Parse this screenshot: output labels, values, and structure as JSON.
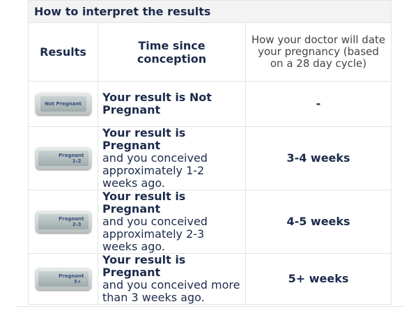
{
  "header": {
    "title": "How to interpret the results"
  },
  "table": {
    "columns": [
      "Results",
      "Time since conception",
      "How your doctor will date your pregnancy (based on a 28 day cycle)"
    ],
    "rows": [
      {
        "display": [
          "Not Pregnant"
        ],
        "result": "Your result is Not Pregnant",
        "doctor": "-"
      },
      {
        "display": [
          "Pregnant",
          "1-2"
        ],
        "result": "Your result is Pregnant",
        "detail": "and you conceived approximately 1-2 weeks ago.",
        "doctor": "3-4 weeks"
      },
      {
        "display": [
          "Pregnant",
          "2-3"
        ],
        "result": "Your result is Pregnant",
        "detail": "and you conceived approximately 2-3 weeks ago.",
        "doctor": "4-5 weeks"
      },
      {
        "display": [
          "Pregnant",
          "3+"
        ],
        "result": "Your result is Pregnant",
        "detail": "and you conceived more than 3 weeks ago.",
        "doctor": "5+ weeks"
      }
    ]
  }
}
